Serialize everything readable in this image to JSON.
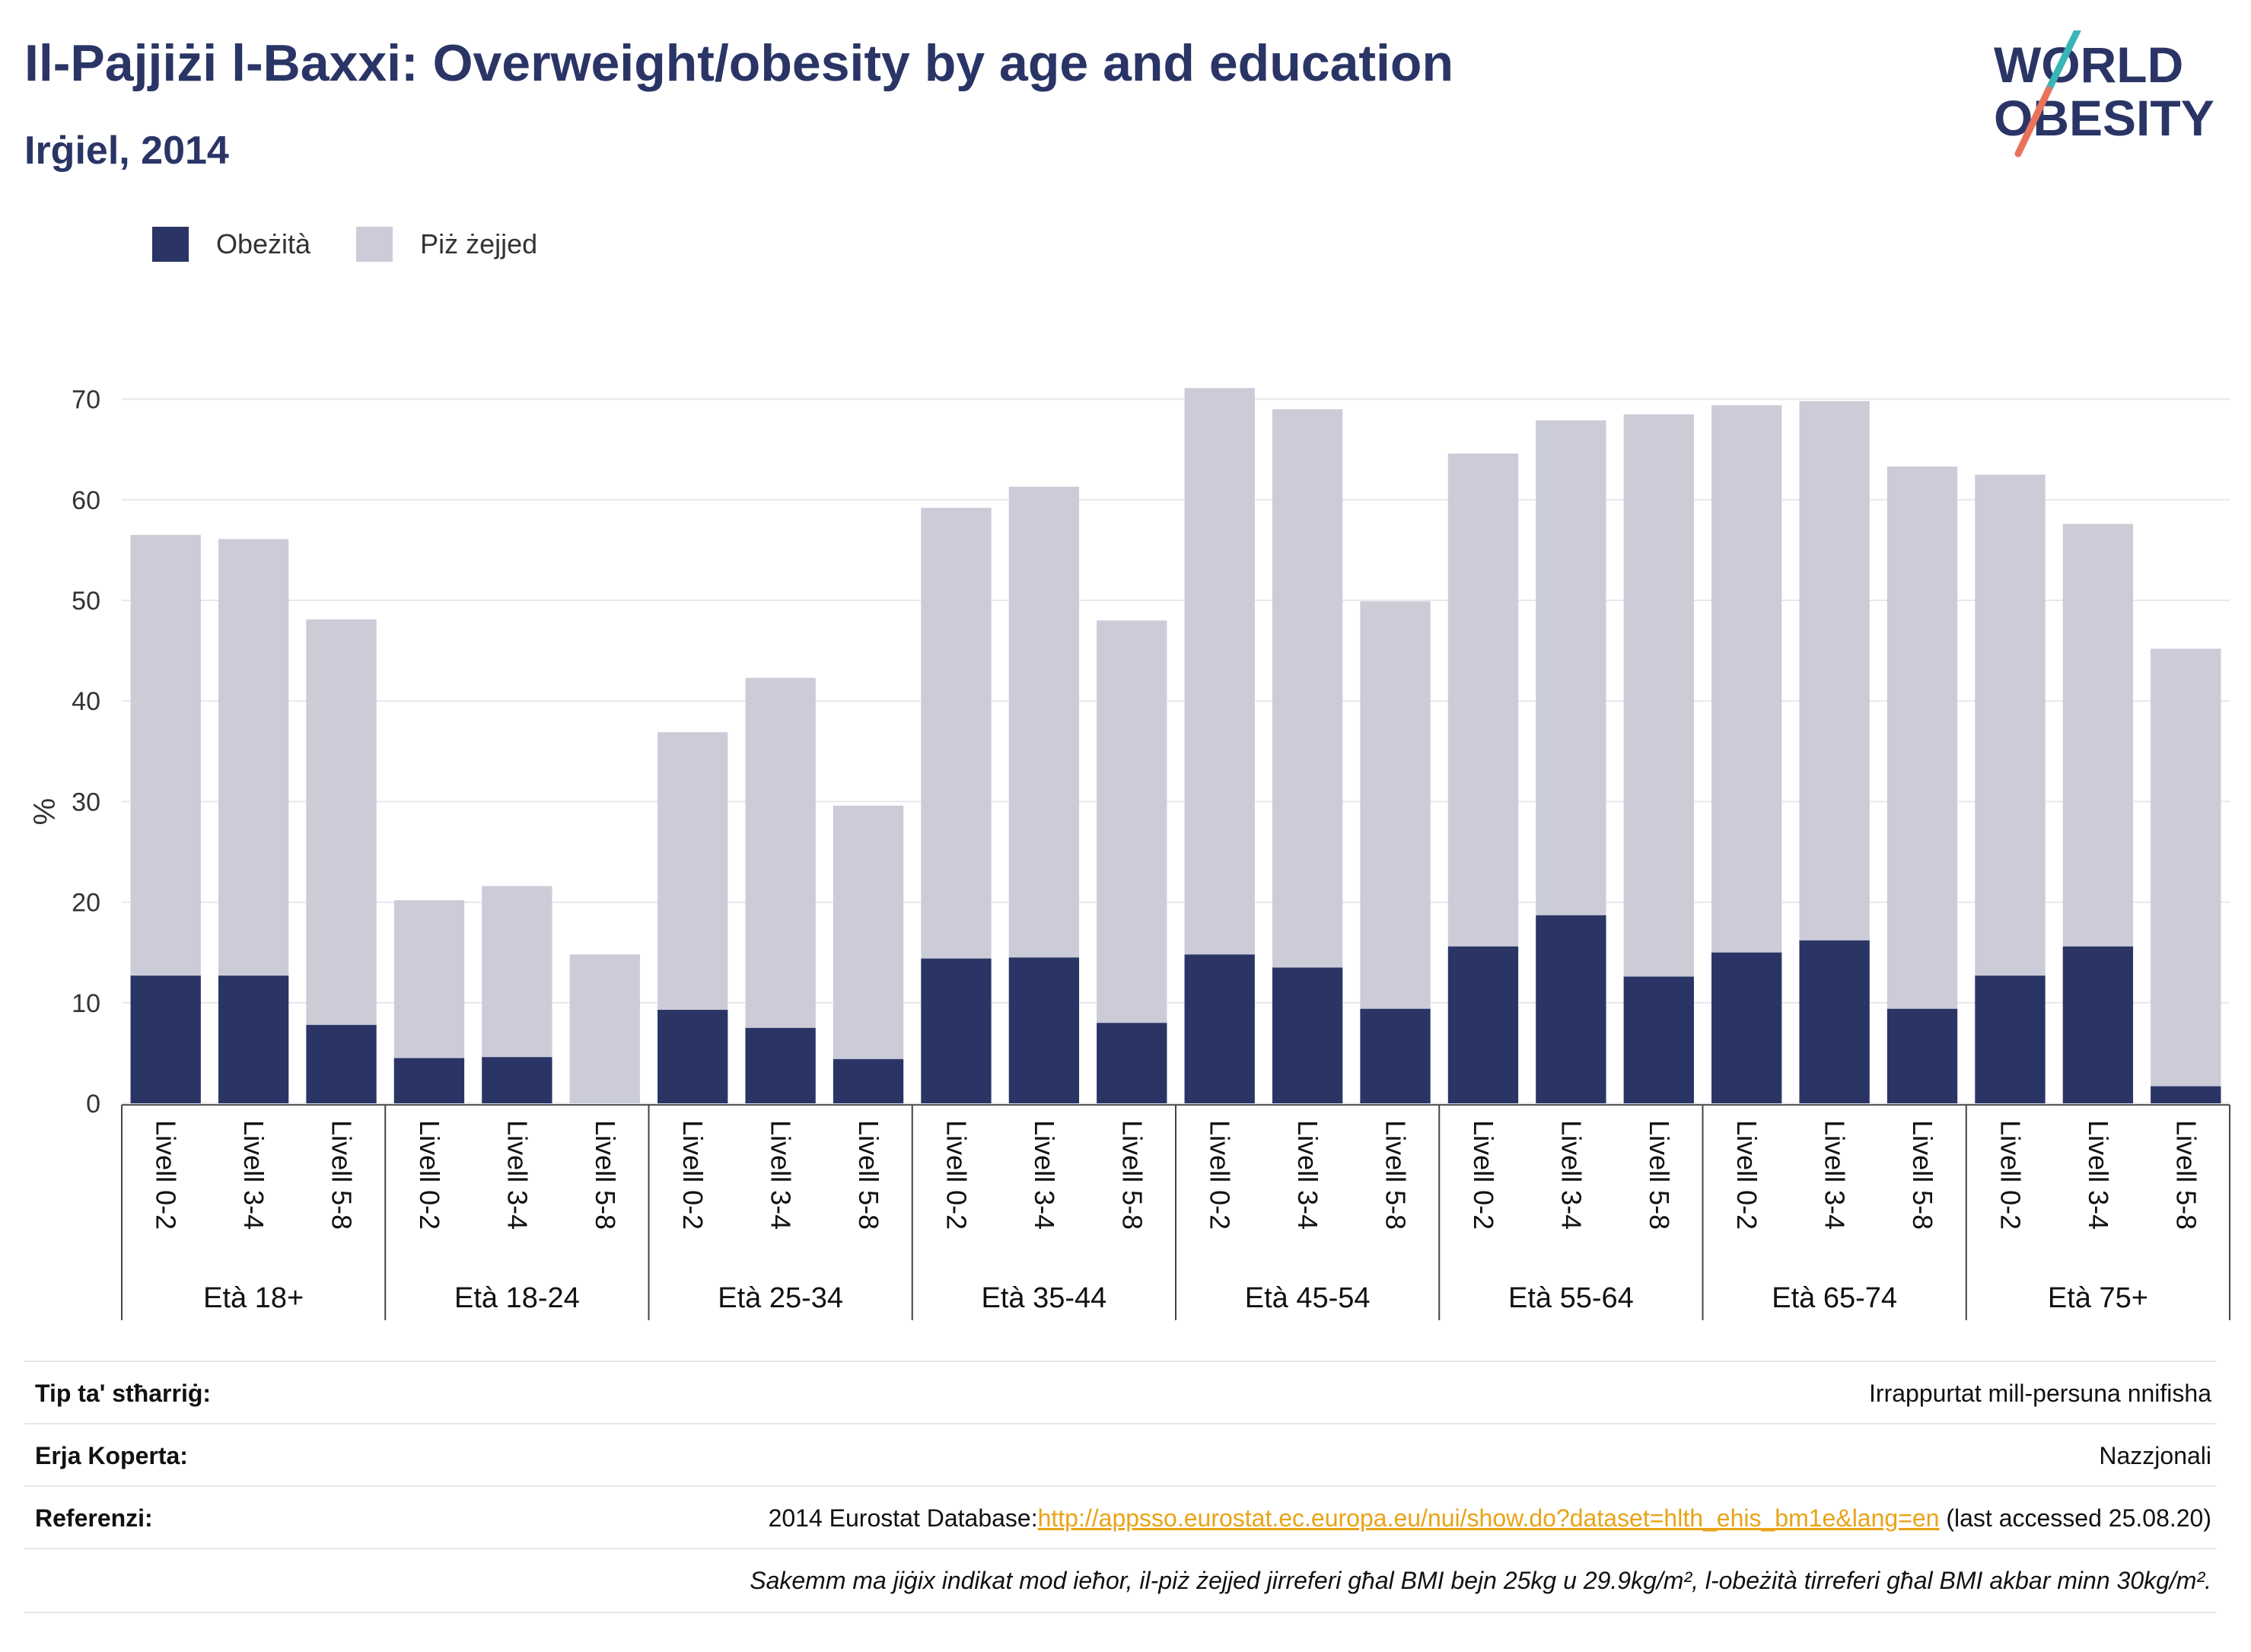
{
  "header": {
    "title": "Il-Pajjiżi l-Baxxi: Overweight/obesity by age and education",
    "subtitle": "Irġiel, 2014"
  },
  "logo": {
    "line1": "WORLD",
    "line2": "OBESITY"
  },
  "colors": {
    "obesity": "#2a3566",
    "overweight": "#cbccd8",
    "accent_teal": "#39b5b6",
    "accent_coral": "#e8735a",
    "link": "#e8a317"
  },
  "chart_data": {
    "type": "bar",
    "stacked": true,
    "ylabel": "%",
    "ylim": [
      0,
      72
    ],
    "yticks": [
      0,
      10,
      20,
      30,
      40,
      50,
      60,
      70
    ],
    "grid": true,
    "legend_placement": "top-left",
    "groups": [
      "Età 18+",
      "Età 18-24",
      "Età 25-34",
      "Età 35-44",
      "Età 45-54",
      "Età 55-64",
      "Età 65-74",
      "Età 75+"
    ],
    "levels": [
      "Livell 0-2",
      "Livell 3-4",
      "Livell 5-8"
    ],
    "series": [
      {
        "name": "Obeżità",
        "values": [
          [
            12.7,
            12.7,
            7.8
          ],
          [
            4.5,
            4.6,
            0
          ],
          [
            9.3,
            7.5,
            4.4
          ],
          [
            14.4,
            14.5,
            8.0
          ],
          [
            14.8,
            13.5,
            9.4
          ],
          [
            15.6,
            18.7,
            12.6
          ],
          [
            15.0,
            16.2,
            9.4
          ],
          [
            12.7,
            15.6,
            1.7
          ]
        ]
      },
      {
        "name": "Piż żejjed",
        "values": [
          [
            43.8,
            43.4,
            40.3
          ],
          [
            15.7,
            17.0,
            14.8
          ],
          [
            27.6,
            34.8,
            25.2
          ],
          [
            44.8,
            46.8,
            40.0
          ],
          [
            56.3,
            55.5,
            40.5
          ],
          [
            49.0,
            49.2,
            55.9
          ],
          [
            54.4,
            53.6,
            53.9
          ],
          [
            49.8,
            42.0,
            43.5
          ]
        ]
      }
    ]
  },
  "info": {
    "rows": [
      {
        "label": "Tip ta' stħarriġ:",
        "value": "Irrappurtat mill-persuna nnifisha"
      },
      {
        "label": "Erja Koperta:",
        "value": "Nazzjonali"
      }
    ],
    "reference": {
      "label": "Referenzi:",
      "prefix": "2014 Eurostat Database:",
      "link": "http://appsso.eurostat.ec.europa.eu/nui/show.do?dataset=hlth_ehis_bm1e&lang=en",
      "suffix": " (last accessed 25.08.20)"
    },
    "note": "Sakemm ma jiġix indikat mod ieħor, il-piż żejjed jirreferi għal BMI bejn 25kg u 29.9kg/m², l-obeżità tirreferi għal BMI akbar minn 30kg/m²."
  }
}
